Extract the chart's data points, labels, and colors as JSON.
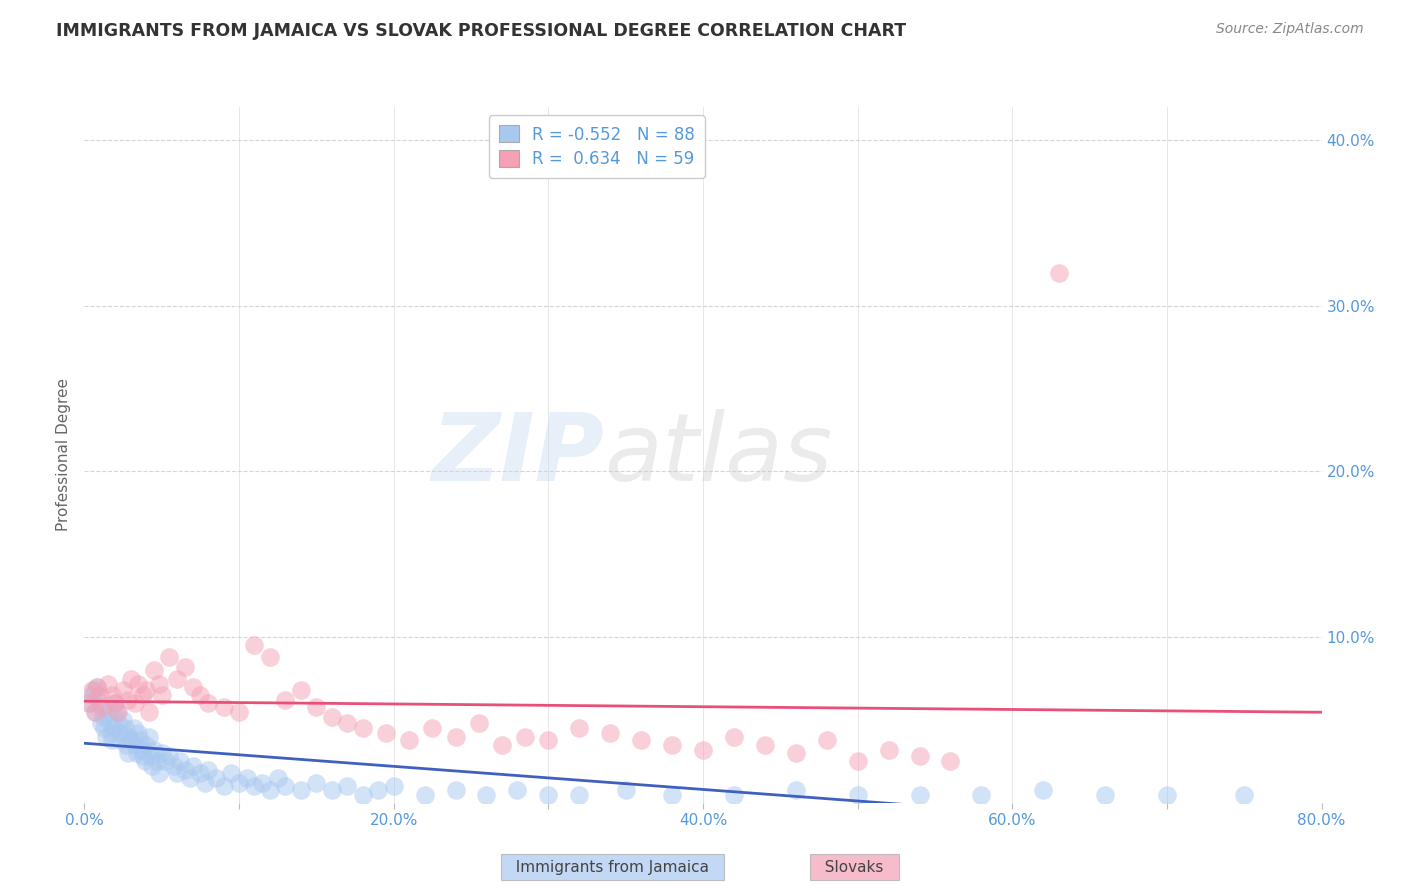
{
  "title": "IMMIGRANTS FROM JAMAICA VS SLOVAK PROFESSIONAL DEGREE CORRELATION CHART",
  "source": "Source: ZipAtlas.com",
  "ylabel": "Professional Degree",
  "xlim": [
    0.0,
    0.8
  ],
  "ylim": [
    0.0,
    0.42
  ],
  "xticks": [
    0.0,
    0.1,
    0.2,
    0.3,
    0.4,
    0.5,
    0.6,
    0.7,
    0.8
  ],
  "xticklabels": [
    "0.0%",
    "",
    "20.0%",
    "",
    "40.0%",
    "",
    "60.0%",
    "",
    "80.0%"
  ],
  "ytick_right_labels": [
    "",
    "10.0%",
    "20.0%",
    "30.0%",
    "40.0%"
  ],
  "ytick_right_values": [
    0.0,
    0.1,
    0.2,
    0.3,
    0.4
  ],
  "legend_r1": "R = -0.552",
  "legend_n1": "N = 88",
  "legend_r2": "R =  0.634",
  "legend_n2": "N = 59",
  "color_blue": "#A8C8F0",
  "color_pink": "#F5A0B5",
  "color_blue_line": "#4060C0",
  "color_pink_line": "#E8507A",
  "color_title": "#333333",
  "color_source": "#888888",
  "color_axis_right": "#5599DD",
  "color_axis_bottom": "#5599DD",
  "background_color": "#FFFFFF",
  "jamaica_x": [
    0.003,
    0.005,
    0.006,
    0.007,
    0.008,
    0.009,
    0.01,
    0.011,
    0.012,
    0.013,
    0.014,
    0.015,
    0.016,
    0.017,
    0.018,
    0.019,
    0.02,
    0.021,
    0.022,
    0.023,
    0.024,
    0.025,
    0.026,
    0.027,
    0.028,
    0.029,
    0.03,
    0.032,
    0.033,
    0.034,
    0.035,
    0.036,
    0.037,
    0.038,
    0.039,
    0.04,
    0.042,
    0.043,
    0.044,
    0.045,
    0.047,
    0.048,
    0.05,
    0.052,
    0.055,
    0.058,
    0.06,
    0.062,
    0.065,
    0.068,
    0.07,
    0.075,
    0.078,
    0.08,
    0.085,
    0.09,
    0.095,
    0.1,
    0.105,
    0.11,
    0.115,
    0.12,
    0.125,
    0.13,
    0.14,
    0.15,
    0.16,
    0.17,
    0.18,
    0.19,
    0.2,
    0.22,
    0.24,
    0.26,
    0.28,
    0.3,
    0.32,
    0.35,
    0.38,
    0.42,
    0.46,
    0.5,
    0.54,
    0.58,
    0.62,
    0.66,
    0.7,
    0.75
  ],
  "jamaica_y": [
    0.06,
    0.065,
    0.068,
    0.055,
    0.07,
    0.062,
    0.058,
    0.048,
    0.052,
    0.045,
    0.04,
    0.055,
    0.05,
    0.042,
    0.038,
    0.045,
    0.06,
    0.055,
    0.048,
    0.042,
    0.038,
    0.05,
    0.045,
    0.035,
    0.03,
    0.04,
    0.038,
    0.045,
    0.035,
    0.03,
    0.042,
    0.038,
    0.032,
    0.028,
    0.025,
    0.035,
    0.04,
    0.028,
    0.022,
    0.032,
    0.025,
    0.018,
    0.03,
    0.025,
    0.028,
    0.022,
    0.018,
    0.025,
    0.02,
    0.015,
    0.022,
    0.018,
    0.012,
    0.02,
    0.015,
    0.01,
    0.018,
    0.012,
    0.015,
    0.01,
    0.012,
    0.008,
    0.015,
    0.01,
    0.008,
    0.012,
    0.008,
    0.01,
    0.005,
    0.008,
    0.01,
    0.005,
    0.008,
    0.005,
    0.008,
    0.005,
    0.005,
    0.008,
    0.005,
    0.005,
    0.008,
    0.005,
    0.005,
    0.005,
    0.008,
    0.005,
    0.005,
    0.005
  ],
  "slovak_x": [
    0.003,
    0.005,
    0.007,
    0.008,
    0.01,
    0.012,
    0.015,
    0.018,
    0.02,
    0.022,
    0.025,
    0.028,
    0.03,
    0.033,
    0.035,
    0.038,
    0.04,
    0.042,
    0.045,
    0.048,
    0.05,
    0.055,
    0.06,
    0.065,
    0.07,
    0.075,
    0.08,
    0.09,
    0.1,
    0.11,
    0.12,
    0.13,
    0.14,
    0.15,
    0.16,
    0.17,
    0.18,
    0.195,
    0.21,
    0.225,
    0.24,
    0.255,
    0.27,
    0.285,
    0.3,
    0.32,
    0.34,
    0.36,
    0.38,
    0.4,
    0.42,
    0.44,
    0.46,
    0.48,
    0.5,
    0.52,
    0.54,
    0.56,
    0.63
  ],
  "slovak_y": [
    0.06,
    0.068,
    0.055,
    0.07,
    0.065,
    0.058,
    0.072,
    0.065,
    0.06,
    0.055,
    0.068,
    0.062,
    0.075,
    0.06,
    0.072,
    0.065,
    0.068,
    0.055,
    0.08,
    0.072,
    0.065,
    0.088,
    0.075,
    0.082,
    0.07,
    0.065,
    0.06,
    0.058,
    0.055,
    0.095,
    0.088,
    0.062,
    0.068,
    0.058,
    0.052,
    0.048,
    0.045,
    0.042,
    0.038,
    0.045,
    0.04,
    0.048,
    0.035,
    0.04,
    0.038,
    0.045,
    0.042,
    0.038,
    0.035,
    0.032,
    0.04,
    0.035,
    0.03,
    0.038,
    0.025,
    0.032,
    0.028,
    0.025,
    0.32
  ]
}
